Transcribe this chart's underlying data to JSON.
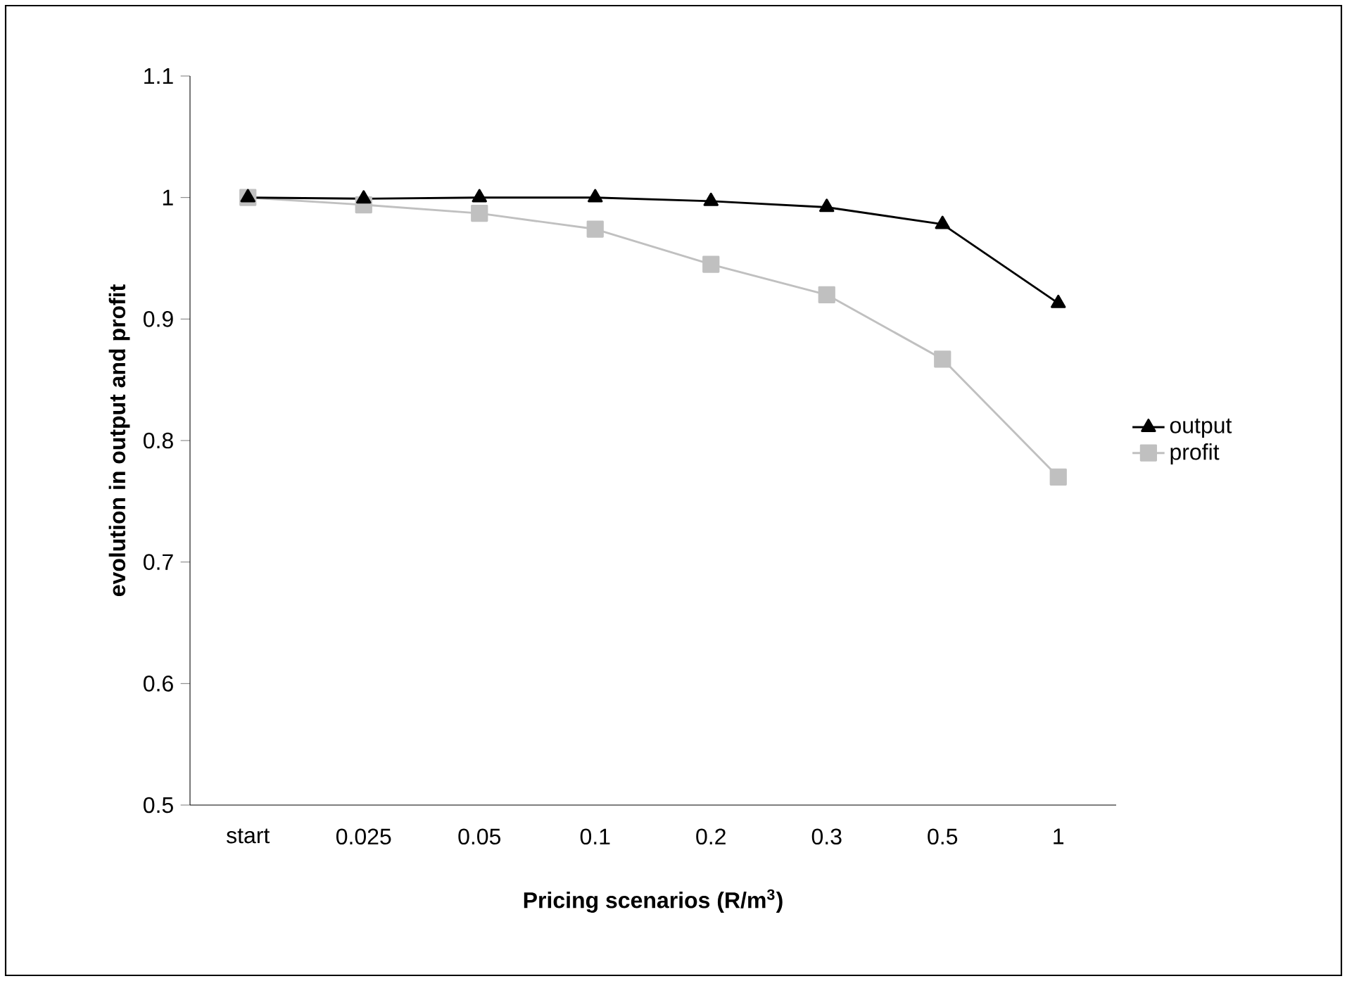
{
  "chart_data": {
    "type": "line",
    "xlabel": "Pricing scenarios (R/m$^{3}$)",
    "ylabel": "evolution in output and profit",
    "categories": [
      "start",
      "0.025",
      "0.05",
      "0.1",
      "0.2",
      "0.3",
      "0.5",
      "1"
    ],
    "series": [
      {
        "name": "output",
        "color": "#000000",
        "marker": "triangle",
        "values": [
          1.0,
          0.999,
          1.0,
          1.0,
          0.997,
          0.992,
          0.978,
          0.913
        ]
      },
      {
        "name": "profit",
        "color": "#c0c0c0",
        "marker": "square",
        "values": [
          1.0,
          0.994,
          0.987,
          0.974,
          0.945,
          0.92,
          0.867,
          0.77
        ]
      }
    ],
    "ylim": [
      0.5,
      1.1
    ],
    "yticks": [
      0.5,
      0.6,
      0.7,
      0.8,
      0.9,
      1,
      1.1
    ],
    "grid": false,
    "legend": "right",
    "line_style": "solid"
  }
}
